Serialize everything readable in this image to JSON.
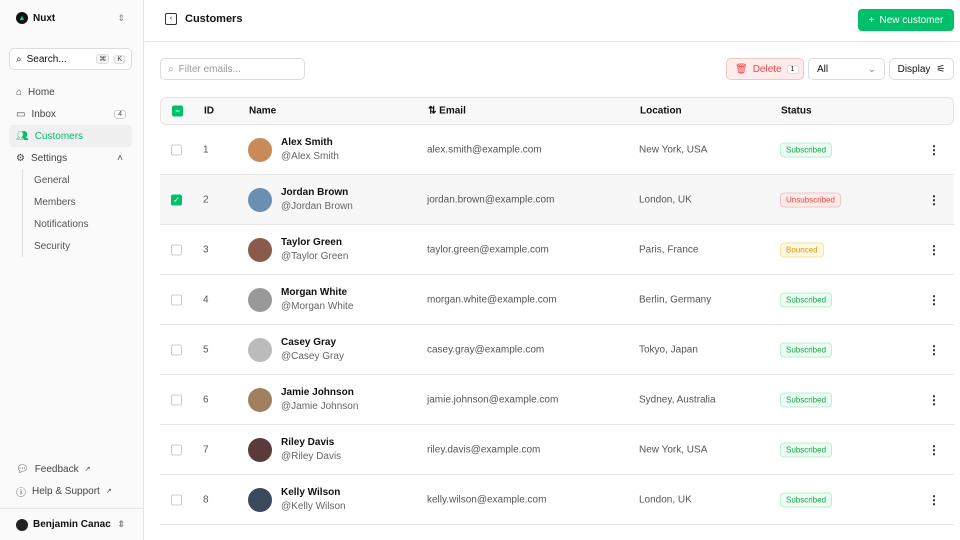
{
  "sidebar": {
    "brand": "Nuxt",
    "search": "Search...",
    "kbd": [
      "⌘",
      "K"
    ],
    "items": [
      {
        "label": "Home",
        "icon": "home-icon"
      },
      {
        "label": "Inbox",
        "icon": "inbox-icon",
        "badge": "4"
      },
      {
        "label": "Customers",
        "icon": "users-icon",
        "active": true
      },
      {
        "label": "Settings",
        "icon": "gear-icon"
      }
    ],
    "settings_sub": [
      "General",
      "Members",
      "Notifications",
      "Security"
    ],
    "footer": [
      "Feedback",
      "Help & Support"
    ],
    "user": "Benjamin Canac"
  },
  "header": {
    "title": "Customers",
    "new_button": "New customer"
  },
  "toolbar": {
    "filter_placeholder": "Filter emails...",
    "delete": "Delete",
    "delete_count": "1",
    "status_filter": "All",
    "display": "Display"
  },
  "table": {
    "headers": {
      "id": "ID",
      "name": "Name",
      "email": "Email",
      "location": "Location",
      "status": "Status"
    },
    "rows": [
      {
        "id": "1",
        "name": "Alex Smith",
        "handle": "@Alex Smith",
        "email": "alex.smith@example.com",
        "location": "New York, USA",
        "status": "Subscribed",
        "selected": false
      },
      {
        "id": "2",
        "name": "Jordan Brown",
        "handle": "@Jordan Brown",
        "email": "jordan.brown@example.com",
        "location": "London, UK",
        "status": "Unsubscribed",
        "selected": true
      },
      {
        "id": "3",
        "name": "Taylor Green",
        "handle": "@Taylor Green",
        "email": "taylor.green@example.com",
        "location": "Paris, France",
        "status": "Bounced",
        "selected": false
      },
      {
        "id": "4",
        "name": "Morgan White",
        "handle": "@Morgan White",
        "email": "morgan.white@example.com",
        "location": "Berlin, Germany",
        "status": "Subscribed",
        "selected": false
      },
      {
        "id": "5",
        "name": "Casey Gray",
        "handle": "@Casey Gray",
        "email": "casey.gray@example.com",
        "location": "Tokyo, Japan",
        "status": "Subscribed",
        "selected": false
      },
      {
        "id": "6",
        "name": "Jamie Johnson",
        "handle": "@Jamie Johnson",
        "email": "jamie.johnson@example.com",
        "location": "Sydney, Australia",
        "status": "Subscribed",
        "selected": false
      },
      {
        "id": "7",
        "name": "Riley Davis",
        "handle": "@Riley Davis",
        "email": "riley.davis@example.com",
        "location": "New York, USA",
        "status": "Subscribed",
        "selected": false
      },
      {
        "id": "8",
        "name": "Kelly Wilson",
        "handle": "@Kelly Wilson",
        "email": "kelly.wilson@example.com",
        "location": "London, UK",
        "status": "Subscribed",
        "selected": false
      }
    ]
  },
  "colors": {
    "accent": "#00c16a",
    "danger": "#ef4444",
    "warning": "#d59b00"
  }
}
